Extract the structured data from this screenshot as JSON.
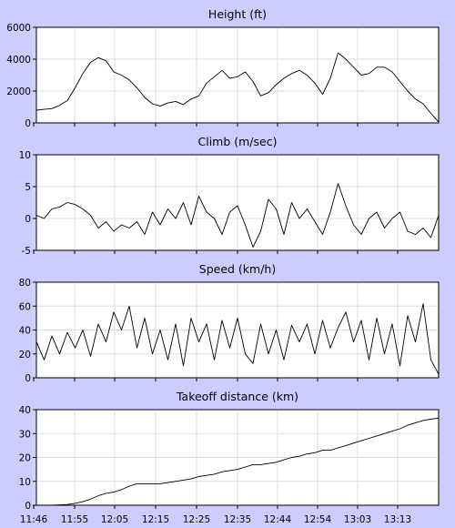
{
  "chart_data": [
    {
      "type": "line",
      "title": "Height (ft)",
      "ylim": [
        0,
        6000
      ],
      "yticks": [
        0,
        2000,
        4000,
        6000
      ],
      "series": [
        {
          "x": [
            0,
            2,
            4,
            6,
            8,
            10,
            12,
            14,
            16,
            18,
            20,
            22,
            24,
            26,
            28,
            30,
            32,
            34,
            36,
            38,
            40,
            42,
            44,
            46,
            48,
            50,
            52,
            54,
            56,
            58,
            60,
            62,
            64,
            66,
            68,
            70,
            72,
            74,
            76,
            78,
            80,
            82,
            84,
            86,
            88,
            90,
            92,
            94,
            96,
            98,
            100,
            102,
            104
          ],
          "values": [
            800,
            850,
            900,
            1100,
            1400,
            2200,
            3100,
            3800,
            4100,
            3900,
            3200,
            3000,
            2700,
            2200,
            1600,
            1200,
            1050,
            1250,
            1350,
            1150,
            1500,
            1700,
            2500,
            2900,
            3300,
            2800,
            2900,
            3200,
            2600,
            1700,
            1900,
            2400,
            2800,
            3100,
            3300,
            3000,
            2500,
            1800,
            2800,
            4400,
            4000,
            3500,
            3000,
            3100,
            3500,
            3500,
            3200,
            2600,
            2000,
            1500,
            1200,
            600,
            50
          ]
        }
      ]
    },
    {
      "type": "line",
      "title": "Climb (m/sec)",
      "ylim": [
        -5,
        10
      ],
      "yticks": [
        -5,
        0,
        5,
        10
      ],
      "series": [
        {
          "x": [
            0,
            2,
            4,
            6,
            8,
            10,
            12,
            14,
            16,
            18,
            20,
            22,
            24,
            26,
            28,
            30,
            32,
            34,
            36,
            38,
            40,
            42,
            44,
            46,
            48,
            50,
            52,
            54,
            56,
            58,
            60,
            62,
            64,
            66,
            68,
            70,
            72,
            74,
            76,
            78,
            80,
            82,
            84,
            86,
            88,
            90,
            92,
            94,
            96,
            98,
            100,
            102,
            104
          ],
          "values": [
            0.5,
            0,
            1.5,
            1.8,
            2.5,
            2.2,
            1.5,
            0.5,
            -1.5,
            -0.5,
            -2,
            -1,
            -1.5,
            -0.5,
            -2.5,
            1,
            -1,
            1.5,
            0,
            2.5,
            -1,
            3.5,
            1,
            0,
            -2.5,
            1,
            2,
            -1,
            -4.5,
            -2,
            3,
            1.5,
            -2.5,
            2.5,
            0,
            1.5,
            -0.5,
            -2.5,
            1,
            5.5,
            2,
            -1,
            -2.5,
            0,
            1,
            -1.5,
            0,
            1,
            -2,
            -2.5,
            -1.5,
            -3,
            0.5
          ]
        }
      ]
    },
    {
      "type": "line",
      "title": "Speed (km/h)",
      "ylim": [
        0,
        80
      ],
      "yticks": [
        0,
        20,
        40,
        60,
        80
      ],
      "series": [
        {
          "x": [
            0,
            2,
            4,
            6,
            8,
            10,
            12,
            14,
            16,
            18,
            20,
            22,
            24,
            26,
            28,
            30,
            32,
            34,
            36,
            38,
            40,
            42,
            44,
            46,
            48,
            50,
            52,
            54,
            56,
            58,
            60,
            62,
            64,
            66,
            68,
            70,
            72,
            74,
            76,
            78,
            80,
            82,
            84,
            86,
            88,
            90,
            92,
            94,
            96,
            98,
            100,
            102,
            104
          ],
          "values": [
            30,
            15,
            35,
            20,
            38,
            25,
            40,
            18,
            45,
            30,
            55,
            40,
            60,
            25,
            50,
            20,
            40,
            15,
            45,
            10,
            50,
            30,
            45,
            15,
            48,
            25,
            50,
            20,
            12,
            45,
            20,
            40,
            15,
            44,
            30,
            45,
            20,
            48,
            25,
            42,
            55,
            30,
            48,
            15,
            50,
            20,
            45,
            10,
            52,
            30,
            62,
            15,
            3
          ]
        }
      ]
    },
    {
      "type": "line",
      "title": "Takeoff distance (km)",
      "ylim": [
        0,
        40
      ],
      "yticks": [
        0,
        10,
        20,
        30,
        40
      ],
      "x_tick_labels": [
        "11:46",
        "11:55",
        "12:05",
        "12:15",
        "12:25",
        "12:35",
        "12:44",
        "12:54",
        "13:03",
        "13:13"
      ],
      "series": [
        {
          "x": [
            0,
            4,
            8,
            10,
            12,
            14,
            16,
            18,
            20,
            22,
            24,
            26,
            28,
            30,
            32,
            34,
            36,
            38,
            40,
            42,
            44,
            46,
            48,
            50,
            52,
            54,
            56,
            58,
            60,
            62,
            64,
            66,
            68,
            70,
            72,
            74,
            76,
            78,
            80,
            82,
            84,
            86,
            88,
            90,
            92,
            94,
            96,
            98,
            100,
            102,
            104
          ],
          "values": [
            0,
            0,
            0.3,
            0.8,
            1.5,
            2.5,
            4,
            5,
            5.5,
            6.5,
            8,
            9,
            9,
            9,
            9,
            9.5,
            10,
            10.5,
            11,
            12,
            12.5,
            13,
            14,
            14.5,
            15,
            16,
            17,
            17,
            17.5,
            18,
            19,
            20,
            20.5,
            21.5,
            22,
            23,
            23,
            24,
            25,
            26,
            27,
            28,
            29,
            30,
            31,
            32,
            33.5,
            34.5,
            35.5,
            36,
            36.5
          ]
        }
      ]
    }
  ]
}
